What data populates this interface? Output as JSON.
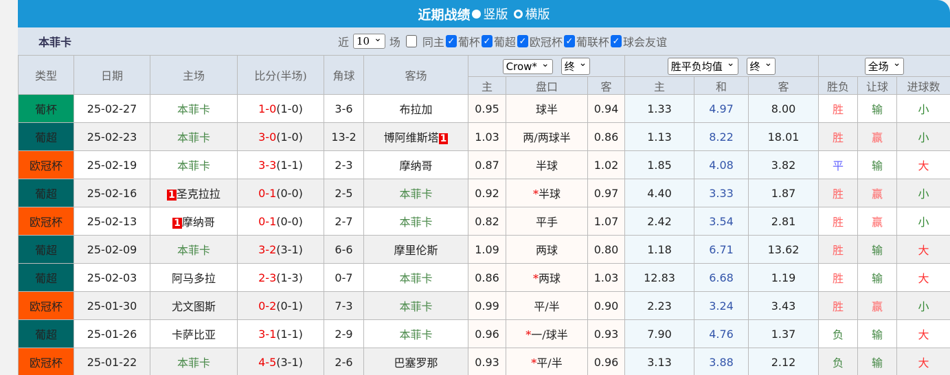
{
  "header": {
    "title": "近期战绩",
    "view_vertical": "竖版",
    "view_horizontal": "横版"
  },
  "team": "本菲卡",
  "filters": {
    "near": "近",
    "count": "10",
    "unit": "场",
    "same_home": "同主",
    "competitions": [
      {
        "label": "葡杯",
        "checked": true
      },
      {
        "label": "葡超",
        "checked": true
      },
      {
        "label": "欧冠杯",
        "checked": true
      },
      {
        "label": "葡联杯",
        "checked": true
      },
      {
        "label": "球会友谊",
        "checked": true
      }
    ]
  },
  "columns": {
    "type": "类型",
    "date": "日期",
    "home": "主场",
    "score": "比分(半场)",
    "corner": "角球",
    "away": "客场",
    "ah_company": "Crow*",
    "ah_stage": "终",
    "eu_type": "胜平负均值",
    "eu_stage": "终",
    "period": "全场",
    "ah_home": "主",
    "ah_line": "盘口",
    "ah_away": "客",
    "eu_home": "主",
    "eu_draw": "和",
    "eu_away": "客",
    "wl": "胜负",
    "handicap": "让球",
    "goals": "进球数"
  },
  "colors": {
    "葡杯": "#009966",
    "葡超": "#006666",
    "欧冠杯": "#ff5500",
    "win": "#ff6666",
    "draw": "#6666ff",
    "loss": "#448844",
    "big": "#ff3333",
    "small": "#338833"
  },
  "rows": [
    {
      "type": "葡杯",
      "date": "25-02-27",
      "home": "本菲卡",
      "home_card": "",
      "score": "1-0",
      "half": "(1-0)",
      "corner": "3-6",
      "away": "布拉加",
      "away_card": "",
      "ah_home": "0.95",
      "ah_star": "",
      "ah_line": "球半",
      "ah_away": "0.94",
      "eu_home": "1.33",
      "eu_draw": "4.97",
      "eu_away": "8.00",
      "wl": "胜",
      "hc": "输",
      "goals": "小"
    },
    {
      "type": "葡超",
      "date": "25-02-23",
      "home": "本菲卡",
      "home_card": "",
      "score": "3-0",
      "half": "(1-0)",
      "corner": "13-2",
      "away": "博阿维斯塔",
      "away_card": "1",
      "ah_home": "1.03",
      "ah_star": "",
      "ah_line": "两/两球半",
      "ah_away": "0.86",
      "eu_home": "1.13",
      "eu_draw": "8.22",
      "eu_away": "18.01",
      "wl": "胜",
      "hc": "赢",
      "goals": "小"
    },
    {
      "type": "欧冠杯",
      "date": "25-02-19",
      "home": "本菲卡",
      "home_card": "",
      "score": "3-3",
      "half": "(1-1)",
      "corner": "2-3",
      "away": "摩纳哥",
      "away_card": "",
      "ah_home": "0.87",
      "ah_star": "",
      "ah_line": "半球",
      "ah_away": "1.02",
      "eu_home": "1.85",
      "eu_draw": "4.08",
      "eu_away": "3.82",
      "wl": "平",
      "hc": "输",
      "goals": "大"
    },
    {
      "type": "葡超",
      "date": "25-02-16",
      "home": "圣克拉拉",
      "home_card": "1",
      "score": "0-1",
      "half": "(0-0)",
      "corner": "2-5",
      "away": "本菲卡",
      "away_card": "",
      "ah_home": "0.92",
      "ah_star": "*",
      "ah_line": "半球",
      "ah_away": "0.97",
      "eu_home": "4.40",
      "eu_draw": "3.33",
      "eu_away": "1.87",
      "wl": "胜",
      "hc": "赢",
      "goals": "小"
    },
    {
      "type": "欧冠杯",
      "date": "25-02-13",
      "home": "摩纳哥",
      "home_card": "1",
      "score": "0-1",
      "half": "(0-0)",
      "corner": "2-7",
      "away": "本菲卡",
      "away_card": "",
      "ah_home": "0.82",
      "ah_star": "",
      "ah_line": "平手",
      "ah_away": "1.07",
      "eu_home": "2.42",
      "eu_draw": "3.54",
      "eu_away": "2.81",
      "wl": "胜",
      "hc": "赢",
      "goals": "小"
    },
    {
      "type": "葡超",
      "date": "25-02-09",
      "home": "本菲卡",
      "home_card": "",
      "score": "3-2",
      "half": "(3-1)",
      "corner": "6-6",
      "away": "摩里伦斯",
      "away_card": "",
      "ah_home": "1.09",
      "ah_star": "",
      "ah_line": "两球",
      "ah_away": "0.80",
      "eu_home": "1.18",
      "eu_draw": "6.71",
      "eu_away": "13.62",
      "wl": "胜",
      "hc": "输",
      "goals": "大"
    },
    {
      "type": "葡超",
      "date": "25-02-03",
      "home": "阿马多拉",
      "home_card": "",
      "score": "2-3",
      "half": "(1-3)",
      "corner": "0-7",
      "away": "本菲卡",
      "away_card": "",
      "ah_home": "0.86",
      "ah_star": "*",
      "ah_line": "两球",
      "ah_away": "1.03",
      "eu_home": "12.83",
      "eu_draw": "6.68",
      "eu_away": "1.19",
      "wl": "胜",
      "hc": "输",
      "goals": "大"
    },
    {
      "type": "欧冠杯",
      "date": "25-01-30",
      "home": "尤文图斯",
      "home_card": "",
      "score": "0-2",
      "half": "(0-1)",
      "corner": "7-3",
      "away": "本菲卡",
      "away_card": "",
      "ah_home": "0.99",
      "ah_star": "",
      "ah_line": "平/半",
      "ah_away": "0.90",
      "eu_home": "2.23",
      "eu_draw": "3.24",
      "eu_away": "3.43",
      "wl": "胜",
      "hc": "赢",
      "goals": "小"
    },
    {
      "type": "葡超",
      "date": "25-01-26",
      "home": "卡萨比亚",
      "home_card": "",
      "score": "3-1",
      "half": "(1-1)",
      "corner": "2-9",
      "away": "本菲卡",
      "away_card": "",
      "ah_home": "0.96",
      "ah_star": "*",
      "ah_line": "一/球半",
      "ah_away": "0.93",
      "eu_home": "7.90",
      "eu_draw": "4.76",
      "eu_away": "1.37",
      "wl": "负",
      "hc": "输",
      "goals": "大"
    },
    {
      "type": "欧冠杯",
      "date": "25-01-22",
      "home": "本菲卡",
      "home_card": "",
      "score": "4-5",
      "half": "(3-1)",
      "corner": "2-6",
      "away": "巴塞罗那",
      "away_card": "",
      "ah_home": "0.93",
      "ah_star": "*",
      "ah_line": "平/半",
      "ah_away": "0.96",
      "eu_home": "3.13",
      "eu_draw": "3.88",
      "eu_away": "2.12",
      "wl": "负",
      "hc": "输",
      "goals": "大"
    }
  ]
}
